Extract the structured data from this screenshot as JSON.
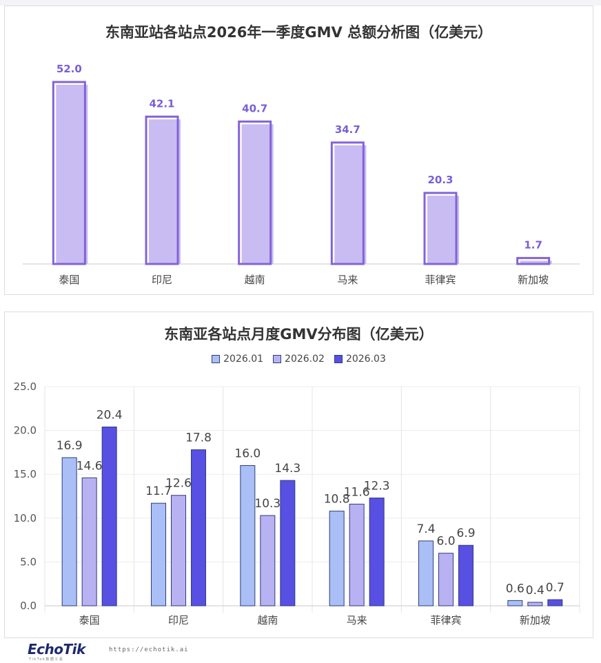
{
  "charts": [
    {
      "title": "东南亚站各站点2026年一季度GMV 总额分析图（亿美元）"
    },
    {
      "title": "东南亚各站点月度GMV分布图（亿美元）"
    }
  ],
  "chart_data": [
    {
      "type": "bar",
      "title": "东南亚站各站点2026年一季度GMV 总额分析图（亿美元）",
      "categories": [
        "泰国",
        "印尼",
        "越南",
        "马来",
        "菲律宾",
        "新加坡"
      ],
      "values": [
        52.0,
        42.1,
        40.7,
        34.7,
        20.3,
        1.7
      ],
      "value_labels": [
        "52.0",
        "42.1",
        "40.7",
        "34.7",
        "20.3",
        "1.7"
      ],
      "ylim": [
        0,
        52.0
      ],
      "grid": false,
      "colors": {
        "fill": "#c2b5f2",
        "outline": "#8363d8",
        "label": "#7a5ed6"
      }
    },
    {
      "type": "bar",
      "title": "东南亚各站点月度GMV分布图（亿美元）",
      "categories": [
        "泰国",
        "印尼",
        "越南",
        "马来",
        "菲律宾",
        "新加坡"
      ],
      "series": [
        {
          "name": "2026.01",
          "values": [
            16.9,
            11.7,
            16.0,
            10.8,
            7.4,
            0.6
          ],
          "labels": [
            "16.9",
            "11.7",
            "16.0",
            "10.8",
            "7.4",
            "0.6"
          ],
          "color": "#a9bff6"
        },
        {
          "name": "2026.02",
          "values": [
            14.6,
            12.6,
            10.3,
            11.6,
            6.0,
            0.4
          ],
          "labels": [
            "14.6",
            "12.6",
            "10.3",
            "11.6",
            "6.0",
            "0.4"
          ],
          "color": "#b8b1f2"
        },
        {
          "name": "2026.03",
          "values": [
            20.4,
            17.8,
            14.3,
            12.3,
            6.9,
            0.7
          ],
          "labels": [
            "20.4",
            "17.8",
            "14.3",
            "12.3",
            "6.9",
            "0.7"
          ],
          "color": "#5750e2"
        }
      ],
      "yticks": [
        "25.0",
        "20.0",
        "15.0",
        "10.0",
        "5.0",
        "0.0"
      ],
      "ylim": [
        0,
        25
      ],
      "grid": true,
      "legend_position": "top-center"
    }
  ],
  "footer": {
    "brand": "EchoTik",
    "brand_sub": "TikTok数据工具",
    "url": "https://echotik.ai"
  }
}
